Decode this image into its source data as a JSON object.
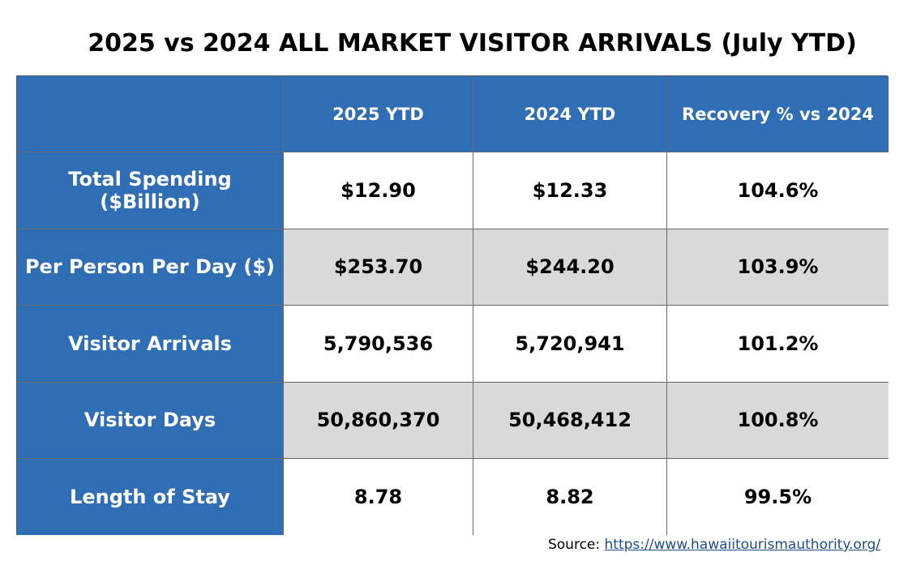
{
  "title": "2025 vs 2024 ALL MARKET VISITOR ARRIVALS (July YTD)",
  "source": {
    "label": "Source:",
    "url_text": "https://www.hawaiitourismauthority.org/"
  },
  "colors": {
    "header_blue": "#2f6db5",
    "stripe_gray": "#d9d9d9",
    "row_white": "#ffffff",
    "link_blue": "#1f4e8c"
  },
  "chart_data": {
    "type": "table",
    "title": "2025 vs 2024 ALL MARKET VISITOR ARRIVALS (July YTD)",
    "columns": [
      "",
      "2025 YTD",
      "2024 YTD",
      "Recovery % vs 2024"
    ],
    "rows": [
      {
        "label": "Total Spending ($Billion)",
        "cells": [
          "$12.90",
          "$12.33",
          "104.6%"
        ]
      },
      {
        "label": "Per Person Per Day ($)",
        "cells": [
          "$253.70",
          "$244.20",
          "103.9%"
        ]
      },
      {
        "label": "Visitor Arrivals",
        "cells": [
          "5,790,536",
          "5,720,941",
          "101.2%"
        ]
      },
      {
        "label": "Visitor Days",
        "cells": [
          "50,860,370",
          "50,468,412",
          "100.8%"
        ]
      },
      {
        "label": "Length of Stay",
        "cells": [
          "8.78",
          "8.82",
          "99.5%"
        ]
      }
    ]
  }
}
